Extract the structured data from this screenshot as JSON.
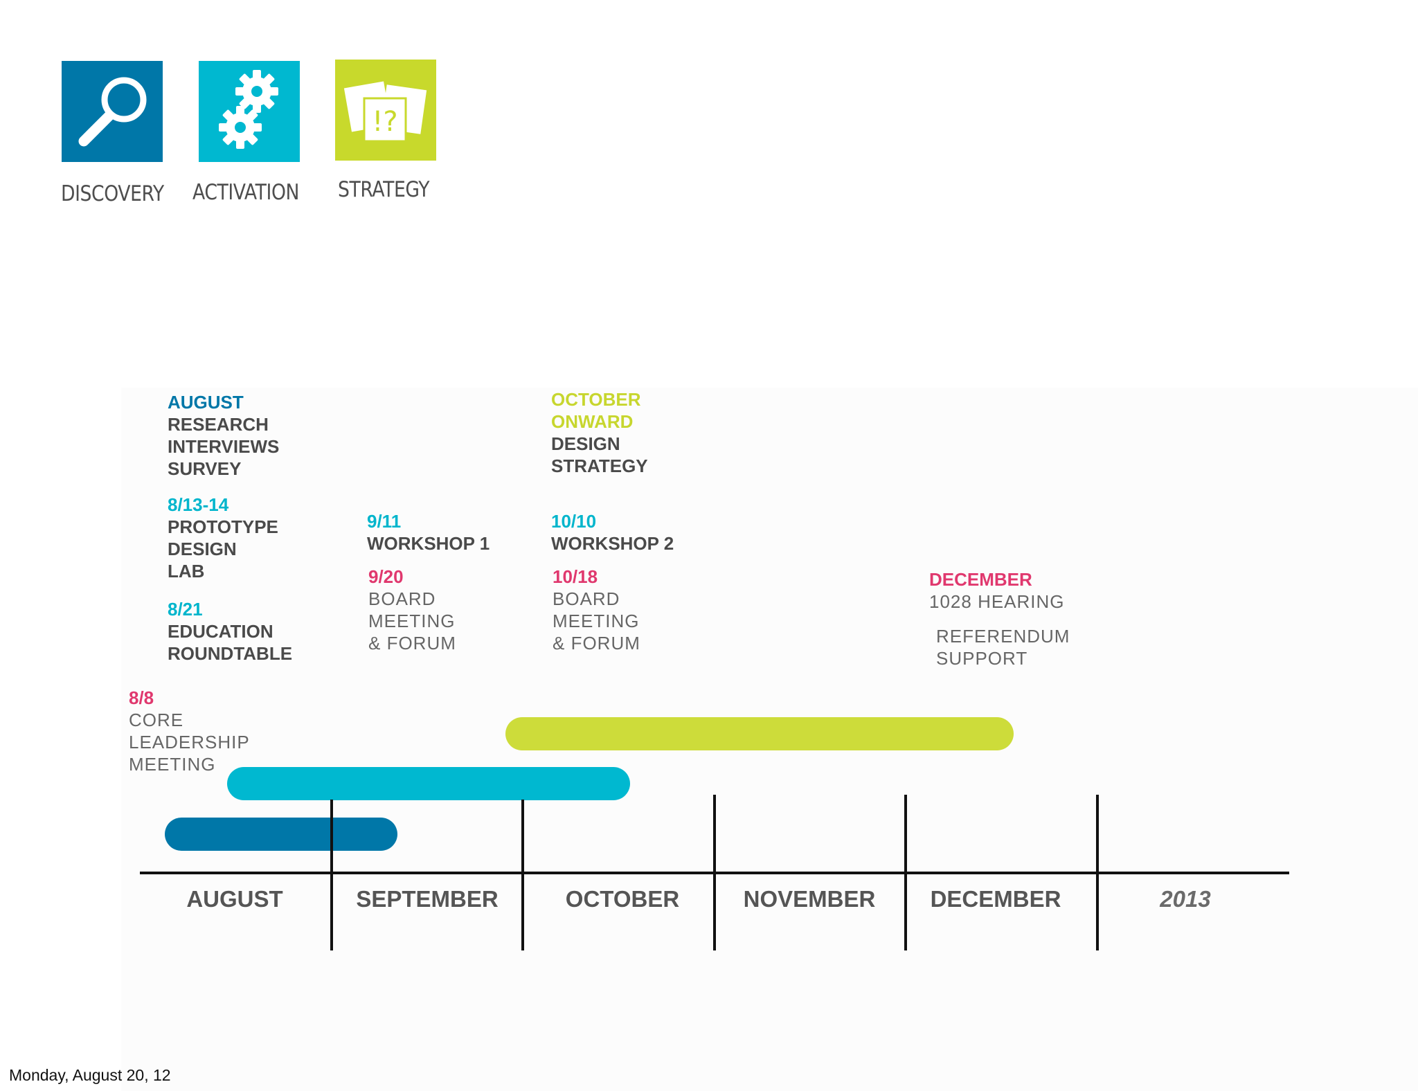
{
  "legend": [
    {
      "label": "DISCOVERY",
      "color": "#0077a8",
      "icon": "magnifier-icon"
    },
    {
      "label": "ACTIVATION",
      "color": "#00b8d0",
      "icon": "gears-icon"
    },
    {
      "label": "STRATEGY",
      "color": "#c8d92c",
      "icon": "cards-icon",
      "glyph": "!?"
    }
  ],
  "milestones": {
    "august": {
      "date": "AUGUST",
      "lines": [
        "RESEARCH",
        "INTERVIEWS",
        "SURVEY"
      ]
    },
    "prototype": {
      "date": "8/13-14",
      "lines": [
        "PROTOTYPE",
        "DESIGN",
        "LAB"
      ]
    },
    "education": {
      "date": "8/21",
      "lines": [
        "EDUCATION",
        "ROUNDTABLE"
      ]
    },
    "core": {
      "date": "8/8",
      "lines": [
        "CORE",
        "LEADERSHIP",
        "MEETING"
      ]
    },
    "workshop1": {
      "date": "9/11",
      "lines": [
        "WORKSHOP 1"
      ]
    },
    "board1": {
      "date": "9/20",
      "lines": [
        "BOARD",
        "MEETING",
        "& FORUM"
      ]
    },
    "october": {
      "date": [
        "OCTOBER",
        "ONWARD"
      ],
      "lines": [
        "DESIGN",
        "STRATEGY"
      ]
    },
    "workshop2": {
      "date": "10/10",
      "lines": [
        "WORKSHOP 2"
      ]
    },
    "board2": {
      "date": "10/18",
      "lines": [
        "BOARD",
        "MEETING",
        "& FORUM"
      ]
    },
    "december": {
      "date": "DECEMBER",
      "lines": [
        "1028 HEARING"
      ],
      "extra": [
        "REFERENDUM",
        "SUPPORT"
      ]
    }
  },
  "timeline": {
    "months": [
      "AUGUST",
      "SEPTEMBER",
      "OCTOBER",
      "NOVEMBER",
      "DECEMBER",
      "2013"
    ],
    "phases": [
      {
        "name": "DISCOVERY",
        "color": "#0077a8",
        "start": "early August",
        "end": "mid September"
      },
      {
        "name": "ACTIVATION",
        "color": "#00b8d0",
        "start": "mid August",
        "end": "mid October"
      },
      {
        "name": "STRATEGY",
        "color": "#cddc3a",
        "start": "late September",
        "end": "mid December"
      }
    ]
  },
  "footer": {
    "date": "Monday, August 20, 12"
  }
}
